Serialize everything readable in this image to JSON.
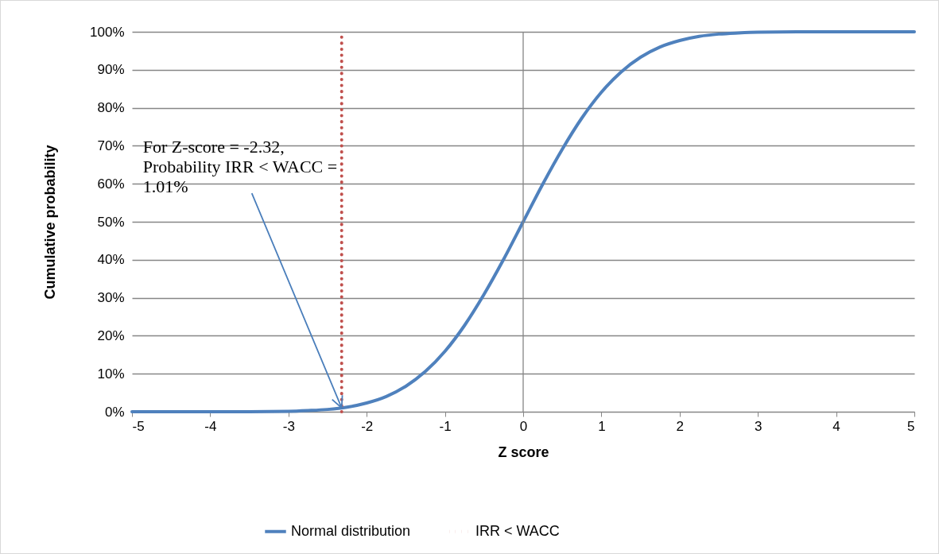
{
  "chart_data": {
    "type": "line",
    "xlabel": "Z score",
    "ylabel": "Cumulative probability",
    "xlim": [
      -5,
      5
    ],
    "xticks": [
      -5,
      -4,
      -3,
      -2,
      -1,
      0,
      1,
      2,
      3,
      4,
      5
    ],
    "ylim": [
      0,
      100
    ],
    "yticks": [
      {
        "value": 0,
        "label": "0%"
      },
      {
        "value": 10,
        "label": "10%"
      },
      {
        "value": 20,
        "label": "20%"
      },
      {
        "value": 30,
        "label": "30%"
      },
      {
        "value": 40,
        "label": "40%"
      },
      {
        "value": 50,
        "label": "50%"
      },
      {
        "value": 60,
        "label": "60%"
      },
      {
        "value": 70,
        "label": "70%"
      },
      {
        "value": 80,
        "label": "80%"
      },
      {
        "value": 90,
        "label": "90%"
      },
      {
        "value": 100,
        "label": "100%"
      }
    ],
    "grid": "y",
    "legend": "bottom",
    "series": [
      {
        "name": "Normal distribution",
        "color": "#4f81bd",
        "line_style": "solid",
        "x": [
          -5,
          -4.5,
          -4,
          -3.5,
          -3,
          -2.75,
          -2.5,
          -2.25,
          -2,
          -1.75,
          -1.5,
          -1.25,
          -1,
          -0.75,
          -0.5,
          -0.25,
          0,
          0.25,
          0.5,
          0.75,
          1,
          1.25,
          1.5,
          1.75,
          2,
          2.25,
          2.5,
          2.75,
          3,
          3.5,
          4,
          4.5,
          5
        ],
        "values": [
          0,
          0,
          0,
          0,
          0.1,
          0.3,
          0.6,
          1.2,
          2.3,
          4,
          6.7,
          10.6,
          15.9,
          22.7,
          30.9,
          40.1,
          50,
          59.9,
          69.1,
          77.3,
          84.1,
          89.4,
          93.3,
          96,
          97.7,
          98.8,
          99.4,
          99.7,
          99.9,
          100,
          100,
          100,
          100
        ]
      },
      {
        "name": "IRR < WACC",
        "color": "#c0504d",
        "line_style": "dotted",
        "x": [
          -2.32,
          -2.32
        ],
        "values": [
          0,
          100
        ]
      }
    ],
    "ref_lines": [
      {
        "axis": "x",
        "value": 0,
        "color": "#868686"
      }
    ],
    "annotations": [
      {
        "text": "For Z-score = -2.32,\nProbability IRR < WACC =\n1.01%",
        "x": -2.32,
        "y": 1.01
      }
    ]
  }
}
